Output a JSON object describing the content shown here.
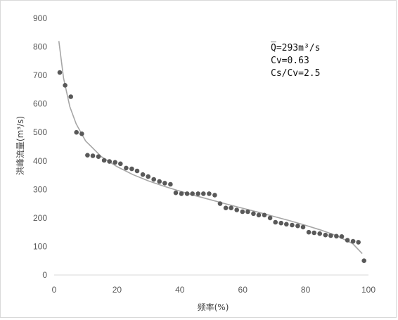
{
  "chart_data": {
    "type": "scatter",
    "xlabel": "频率(%)",
    "ylabel": "洪峰流量(m³/s)",
    "xlim": [
      0,
      100
    ],
    "ylim": [
      0,
      900
    ],
    "xticks": [
      "0",
      "20",
      "40",
      "60",
      "80",
      "100"
    ],
    "yticks": [
      "0",
      "100",
      "200",
      "300",
      "400",
      "500",
      "600",
      "700",
      "800",
      "900"
    ],
    "grid": false,
    "legend": "none",
    "annotations": [
      "Q̅=293m³/s",
      "Cv=0.63",
      "Cs/Cv=2.5"
    ],
    "colors": {
      "points": "#595959",
      "curve": "#a6a6a6",
      "axis": "#d9d9d9"
    },
    "series": [
      {
        "kind": "scatter",
        "x": [
          1.8,
          3.5,
          5.3,
          7.1,
          8.8,
          10.6,
          12.3,
          14.1,
          15.9,
          17.6,
          19.4,
          21.1,
          22.9,
          24.7,
          26.4,
          28.2,
          29.9,
          31.7,
          33.5,
          35.2,
          37.0,
          38.7,
          40.5,
          42.3,
          44.0,
          45.8,
          47.5,
          49.3,
          51.1,
          52.8,
          54.6,
          56.3,
          58.1,
          59.9,
          61.6,
          63.4,
          65.1,
          66.9,
          68.7,
          70.4,
          72.2,
          73.9,
          75.7,
          77.5,
          79.2,
          81.0,
          82.7,
          84.5,
          86.3,
          88.0,
          89.8,
          91.5,
          93.3,
          95.1,
          96.8,
          98.6
        ],
        "y": [
          710,
          665,
          625,
          500,
          495,
          420,
          418,
          415,
          402,
          398,
          395,
          390,
          375,
          372,
          365,
          352,
          345,
          335,
          328,
          322,
          318,
          288,
          285,
          285,
          285,
          285,
          285,
          285,
          280,
          250,
          235,
          235,
          228,
          222,
          222,
          215,
          210,
          210,
          200,
          185,
          182,
          178,
          175,
          172,
          168,
          150,
          148,
          145,
          140,
          138,
          136,
          135,
          122,
          118,
          115,
          50
        ]
      },
      {
        "kind": "line",
        "x": [
          1.5,
          3,
          5,
          7,
          10,
          15,
          20,
          25,
          30,
          35,
          40,
          45,
          50,
          55,
          60,
          65,
          70,
          75,
          80,
          85,
          90,
          95,
          98
        ],
        "y": [
          820,
          690,
          590,
          530,
          470,
          415,
          380,
          352,
          330,
          311,
          294,
          278,
          263,
          248,
          234,
          220,
          205,
          190,
          174,
          157,
          137,
          110,
          75
        ]
      }
    ]
  }
}
